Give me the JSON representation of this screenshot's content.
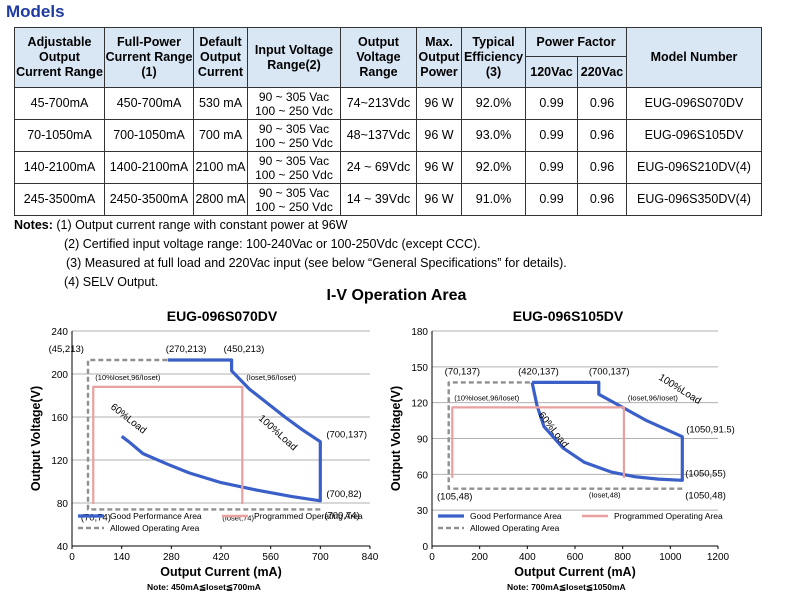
{
  "section_title": "Models",
  "table": {
    "headers": {
      "adj_current": "Adjustable Output Current Range",
      "full_power": "Full-Power Current Range (1)",
      "default_current": "Default Output Current",
      "input_voltage": "Input Voltage Range(2)",
      "output_voltage": "Output Voltage Range",
      "max_power": "Max. Output Power",
      "efficiency": "Typical Efficiency (3)",
      "power_factor": "Power Factor",
      "pf_120": "120Vac",
      "pf_220": "220Vac",
      "model": "Model Number"
    },
    "rows": [
      {
        "adj": "45-700mA",
        "full": "450-700mA",
        "def": "530 mA",
        "vin1": "90 ~ 305 Vac",
        "vin2": "100 ~ 250 Vdc",
        "vout": "74~213Vdc",
        "pmax": "96 W",
        "eff": "92.0%",
        "pf120": "0.99",
        "pf220": "0.96",
        "model": "EUG-096S070DV"
      },
      {
        "adj": "70-1050mA",
        "full": "700-1050mA",
        "def": "700 mA",
        "vin1": "90 ~ 305 Vac",
        "vin2": "100 ~ 250 Vdc",
        "vout": "48~137Vdc",
        "pmax": "96 W",
        "eff": "93.0%",
        "pf120": "0.99",
        "pf220": "0.96",
        "model": "EUG-096S105DV"
      },
      {
        "adj": "140-2100mA",
        "full": "1400-2100mA",
        "def": "2100 mA",
        "vin1": "90 ~ 305 Vac",
        "vin2": "100 ~ 250 Vdc",
        "vout": "24 ~ 69Vdc",
        "pmax": "96 W",
        "eff": "92.0%",
        "pf120": "0.99",
        "pf220": "0.96",
        "model": "EUG-096S210DV(4)"
      },
      {
        "adj": "245-3500mA",
        "full": "2450-3500mA",
        "def": "2800 mA",
        "vin1": "90 ~ 305 Vac",
        "vin2": "100 ~ 250 Vdc",
        "vout": "14 ~ 39Vdc",
        "pmax": "96 W",
        "eff": "91.0%",
        "pf120": "0.99",
        "pf220": "0.96",
        "model": "EUG-096S350DV(4)"
      }
    ]
  },
  "notes": {
    "label": "Notes:",
    "n1": "(1) Output current range with constant power at 96W",
    "n2": "(2) Certified input voltage range: 100-240Vac or 100-250Vdc (except CCC).",
    "n3": "(3) Measured at full load and 220Vac input (see below “General Specifications” for details).",
    "n4": "(4) SELV Output."
  },
  "iv_title": "I-V Operation Area",
  "chart_data": [
    {
      "type": "line",
      "title": "EUG-096S070DV",
      "xlabel": "Output Current (mA)",
      "ylabel": "Output Voltage(V)",
      "xlim": [
        0,
        840
      ],
      "ylim": [
        40,
        240
      ],
      "xticks": [
        0,
        140,
        280,
        420,
        560,
        700,
        840
      ],
      "yticks": [
        40,
        80,
        120,
        160,
        200,
        240
      ],
      "grid": true,
      "legend_position": "bottom",
      "note": "Note:  450mA≦Ioset≦700mA",
      "series": [
        {
          "name": "Good Performance Area",
          "color": "#3a5fc8",
          "points": [
            [
              270,
              213
            ],
            [
              450,
              213
            ],
            [
              450,
              203
            ],
            [
              500,
              186
            ],
            [
              550,
              173
            ],
            [
              600,
              160
            ],
            [
              650,
              148
            ],
            [
              700,
              137
            ],
            [
              700,
              82
            ],
            [
              620,
              86
            ],
            [
              520,
              92
            ],
            [
              420,
              99
            ],
            [
              330,
              108
            ],
            [
              270,
              116
            ],
            [
              200,
              126
            ],
            [
              160,
              137
            ],
            [
              140,
              142
            ]
          ]
        },
        {
          "name": "Allowed Operating Area",
          "color": "#909090",
          "points": [
            [
              700,
              74
            ],
            [
              45,
              74
            ],
            [
              45,
              213
            ],
            [
              270,
              213
            ]
          ]
        },
        {
          "name": "Programmed Operating Area",
          "color": "#e8a0a0",
          "points": [
            [
              60,
              79
            ],
            [
              60,
              188
            ],
            [
              480,
              188
            ],
            [
              480,
              79
            ]
          ]
        }
      ],
      "annotations": [
        {
          "text": "(45,213)",
          "x": 45,
          "y": 213
        },
        {
          "text": "(270,213)",
          "x": 270,
          "y": 213
        },
        {
          "text": "(450,213)",
          "x": 450,
          "y": 213
        },
        {
          "text": "(10%Ioset,96/Ioset)",
          "x": 60,
          "y": 188
        },
        {
          "text": "(Ioset,96/Ioset)",
          "x": 480,
          "y": 188
        },
        {
          "text": "100%Load",
          "x": 0,
          "y": 0
        },
        {
          "text": "60%Load",
          "x": 0,
          "y": 0
        },
        {
          "text": "(700,137)",
          "x": 700,
          "y": 137
        },
        {
          "text": "(700,82)",
          "x": 700,
          "y": 82
        },
        {
          "text": "(700,74)",
          "x": 700,
          "y": 74
        },
        {
          "text": "(70,74)",
          "x": 70,
          "y": 74
        },
        {
          "text": "(Ioset,74)",
          "x": 480,
          "y": 74
        }
      ]
    },
    {
      "type": "line",
      "title": "EUG-096S105DV",
      "xlabel": "Output Current (mA)",
      "ylabel": "Output Voltage(V)",
      "xlim": [
        0,
        1200
      ],
      "ylim": [
        0,
        180
      ],
      "xticks": [
        0,
        200,
        400,
        600,
        800,
        1000,
        1200
      ],
      "yticks": [
        0,
        30,
        60,
        90,
        120,
        150,
        180
      ],
      "grid": true,
      "legend_position": "bottom",
      "note": "Note:  700mA≦Ioset≦1050mA",
      "series": [
        {
          "name": "Good Performance Area",
          "color": "#3a5fc8",
          "points": [
            [
              420,
              137
            ],
            [
              700,
              137
            ],
            [
              700,
              127
            ],
            [
              800,
              116
            ],
            [
              900,
              105
            ],
            [
              1050,
              91.5
            ],
            [
              1050,
              55
            ],
            [
              950,
              56
            ],
            [
              850,
              58
            ],
            [
              750,
              62
            ],
            [
              640,
              70
            ],
            [
              550,
              82
            ],
            [
              470,
              100
            ],
            [
              440,
              118
            ],
            [
              420,
              137
            ]
          ]
        },
        {
          "name": "Allowed Operating Area",
          "color": "#909090",
          "points": [
            [
              1050,
              48
            ],
            [
              70,
              48
            ],
            [
              70,
              137
            ],
            [
              420,
              137
            ]
          ]
        },
        {
          "name": "Programmed Operating Area",
          "color": "#e8a0a0",
          "points": [
            [
              85,
              57
            ],
            [
              85,
              116
            ],
            [
              805,
              116
            ],
            [
              805,
              57
            ]
          ]
        }
      ],
      "annotations": [
        {
          "text": "(70,137)",
          "x": 70,
          "y": 137
        },
        {
          "text": "(420,137)",
          "x": 420,
          "y": 137
        },
        {
          "text": "(700,137)",
          "x": 700,
          "y": 137
        },
        {
          "text": "(10%Ioset,96/Ioset)",
          "x": 85,
          "y": 116
        },
        {
          "text": "(Ioset,96/Ioset)",
          "x": 805,
          "y": 116
        },
        {
          "text": "100%Load",
          "x": 0,
          "y": 0
        },
        {
          "text": "60%Load",
          "x": 0,
          "y": 0
        },
        {
          "text": "(1050,91.5)",
          "x": 1050,
          "y": 91.5
        },
        {
          "text": "(1050,55)",
          "x": 1050,
          "y": 55
        },
        {
          "text": "(1050,48)",
          "x": 1050,
          "y": 48
        },
        {
          "text": "(105,48)",
          "x": 105,
          "y": 48
        },
        {
          "text": "(Ioset,48)",
          "x": 805,
          "y": 48
        }
      ]
    }
  ]
}
